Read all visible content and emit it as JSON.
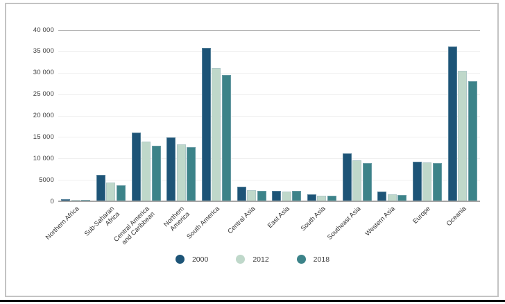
{
  "chart_data": {
    "type": "bar",
    "title": "",
    "xlabel": "",
    "ylabel": "",
    "ylim": [
      0,
      40000
    ],
    "grid": "horizontal",
    "legend_position": "bottom",
    "categories": [
      "Northern Africa",
      "Sub-Saharan\nAfrica",
      "Central America\nand Caribbean",
      "Northern\nAmerica",
      "South America",
      "Central Asia",
      "East Asia",
      "South Asia",
      "Southeast Asia",
      "Western Asia",
      "Europe",
      "Oceania"
    ],
    "y_ticks": [
      {
        "value": 40000,
        "label": "40 000"
      },
      {
        "value": 35000,
        "label": "35 000"
      },
      {
        "value": 30000,
        "label": "30 000"
      },
      {
        "value": 25000,
        "label": "25 000"
      },
      {
        "value": 20000,
        "label": "20 000"
      },
      {
        "value": 15000,
        "label": "15 000"
      },
      {
        "value": 10000,
        "label": "10 000"
      },
      {
        "value": 5000,
        "label": "5000"
      },
      {
        "value": 0,
        "label": "0"
      }
    ],
    "series": [
      {
        "name": "2000",
        "color": "#1d5477",
        "values": [
          500,
          6200,
          16100,
          14900,
          35800,
          3350,
          2450,
          1700,
          11100,
          2200,
          9300,
          36100
        ]
      },
      {
        "name": "2012",
        "color": "#bfd8ca",
        "values": [
          350,
          4400,
          13900,
          13200,
          31100,
          2600,
          2300,
          1300,
          9500,
          1650,
          9000,
          30400
        ]
      },
      {
        "name": "2018",
        "color": "#3c8389",
        "values": [
          400,
          3750,
          13000,
          12600,
          29400,
          2500,
          2350,
          1250,
          8900,
          1500,
          8950,
          28000
        ]
      }
    ]
  },
  "colors": {
    "frame_border": "#c3c3c3",
    "top_rule": "#8b8b8b",
    "gridline": "#efefef",
    "axis_line": "#a6a6a6",
    "page_edge": "#0c0c0c"
  }
}
